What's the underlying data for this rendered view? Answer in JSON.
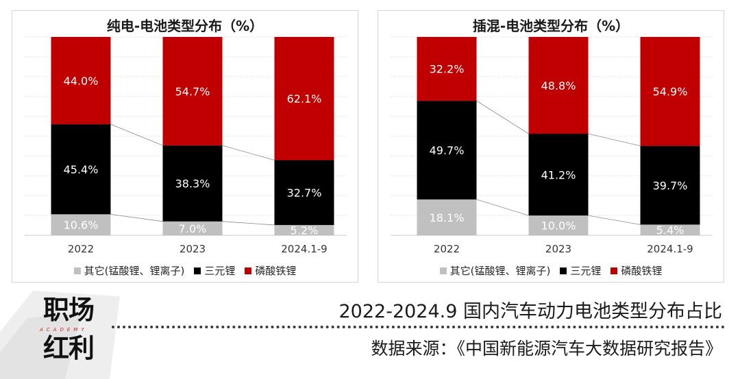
{
  "legend": {
    "others": "其它(锰酸锂、锂离子)",
    "ternary": "三元锂",
    "lfp": "磷酸铁锂"
  },
  "colors": {
    "others": "#c0c0c0",
    "ternary": "#000000",
    "lfp": "#c00000",
    "label_dark": "#ffffff"
  },
  "chart_data": [
    {
      "type": "bar",
      "stacked": true,
      "title": "纯电-电池类型分布（%）",
      "categories": [
        "2022",
        "2023",
        "2024.1-9"
      ],
      "series": [
        {
          "name": "其它(锰酸锂、锂离子)",
          "values": [
            10.6,
            7.0,
            5.2
          ],
          "labels": [
            "10.6%",
            "7.0%",
            "5.2%"
          ]
        },
        {
          "name": "三元锂",
          "values": [
            45.4,
            38.3,
            32.7
          ],
          "labels": [
            "45.4%",
            "38.3%",
            "32.7%"
          ]
        },
        {
          "name": "磷酸铁锂",
          "values": [
            44.0,
            54.7,
            62.1
          ],
          "labels": [
            "44.0%",
            "54.7%",
            "62.1%"
          ]
        }
      ],
      "ylim": [
        0,
        100
      ],
      "grid": true,
      "legend_position": "bottom"
    },
    {
      "type": "bar",
      "stacked": true,
      "title": "插混-电池类型分布（%）",
      "categories": [
        "2022",
        "2023",
        "2024.1-9"
      ],
      "series": [
        {
          "name": "其它(锰酸锂、锂离子)",
          "values": [
            18.1,
            10.0,
            5.4
          ],
          "labels": [
            "18.1%",
            "10.0%",
            "5.4%"
          ]
        },
        {
          "name": "三元锂",
          "values": [
            49.7,
            41.2,
            39.7
          ],
          "labels": [
            "49.7%",
            "41.2%",
            "39.7%"
          ]
        },
        {
          "name": "磷酸铁锂",
          "values": [
            32.2,
            48.8,
            54.9
          ],
          "labels": [
            "32.2%",
            "48.8%",
            "54.9%"
          ]
        }
      ],
      "ylim": [
        0,
        100
      ],
      "grid": true,
      "legend_position": "bottom"
    }
  ],
  "footer": {
    "brand_line1": "职场",
    "brand_sub": "ACADEMY",
    "brand_line2": "红利",
    "title": "2022-2024.9 国内汽车动力电池类型分布占比",
    "source": "数据来源：《中国新能源汽车大数据研究报告》"
  }
}
